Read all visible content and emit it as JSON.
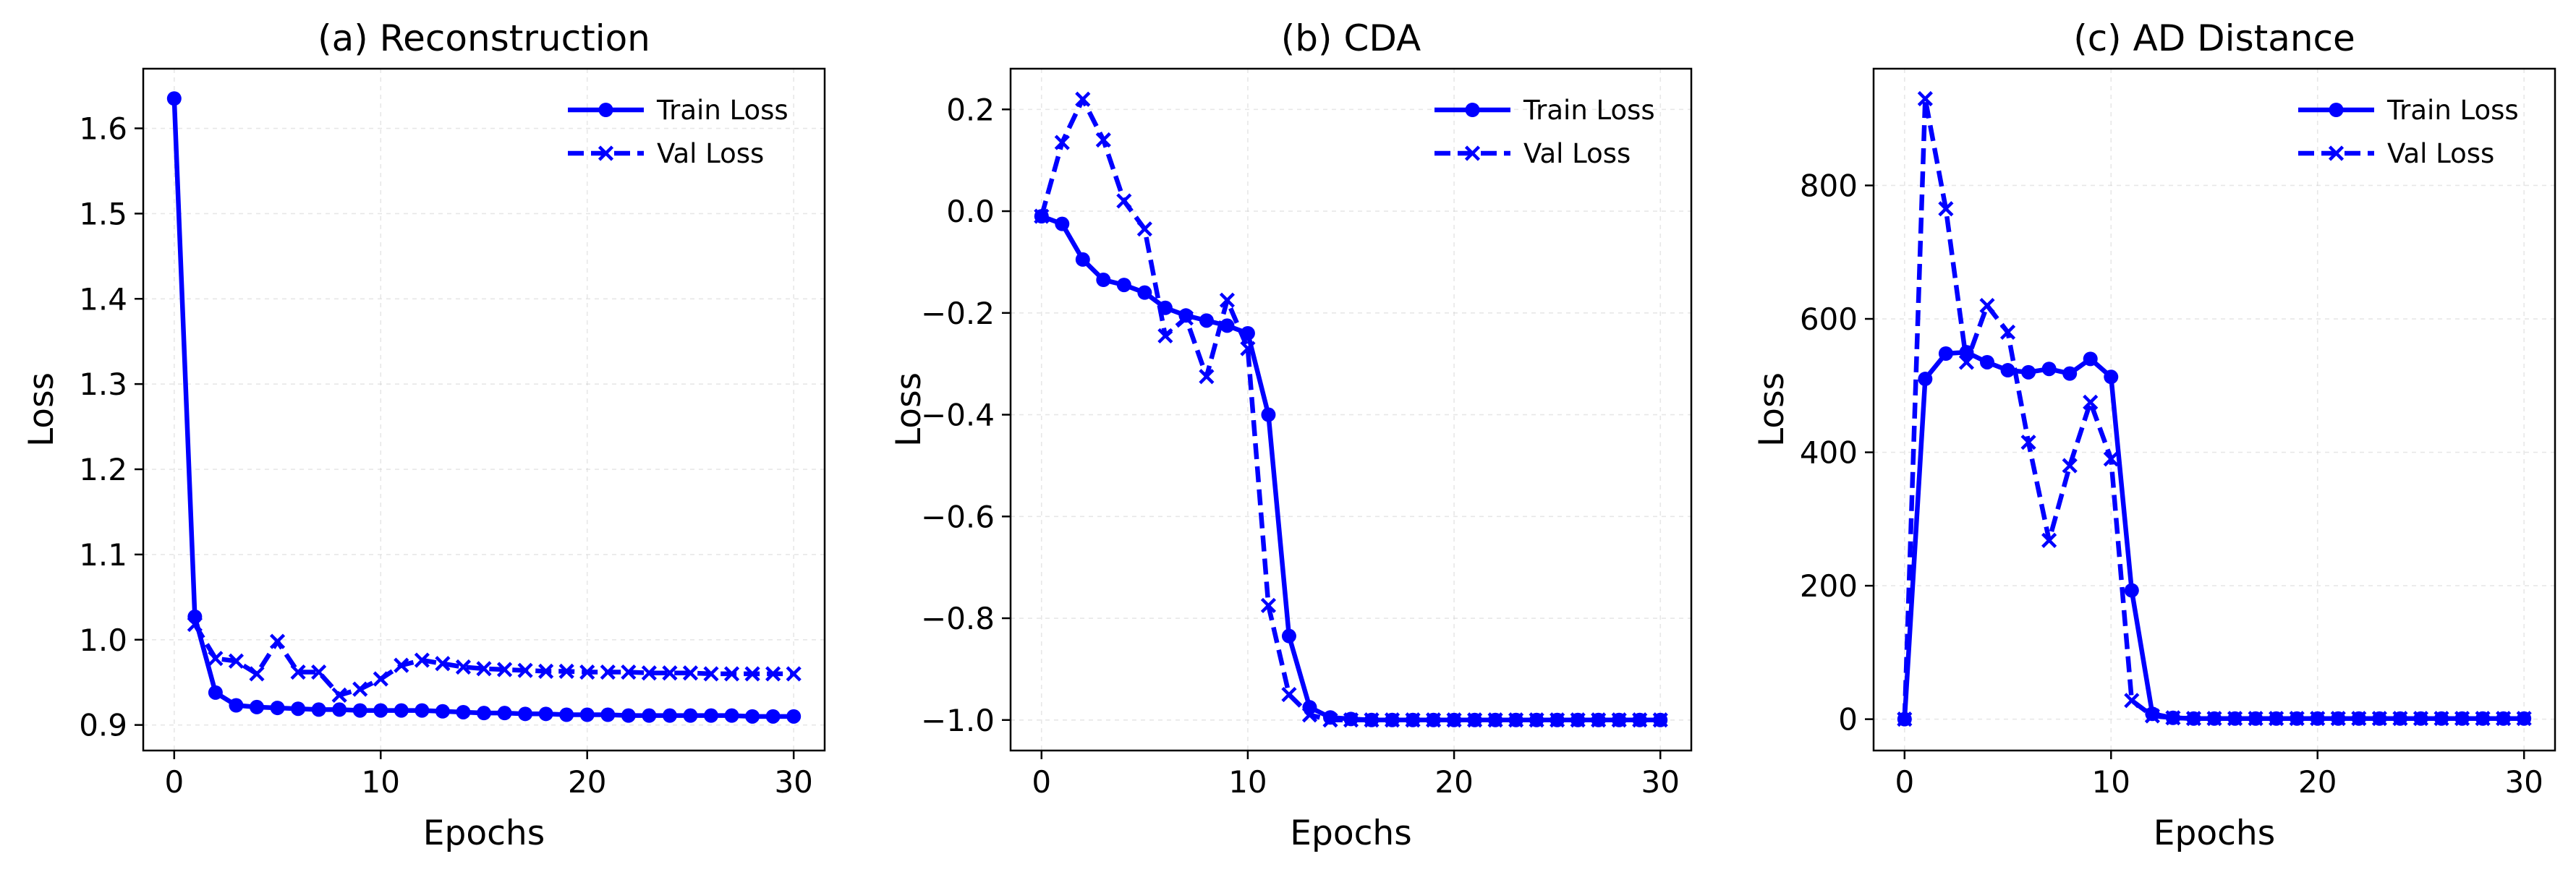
{
  "chart_data": [
    {
      "type": "line",
      "title": "(a) Reconstruction",
      "xlabel": "Epochs",
      "ylabel": "Loss",
      "xlim": [
        -1.5,
        31.5
      ],
      "ylim": [
        0.87,
        1.67
      ],
      "xticks": [
        0,
        10,
        20,
        30
      ],
      "yticks": [
        0.9,
        1.0,
        1.1,
        1.2,
        1.3,
        1.4,
        1.5,
        1.6
      ],
      "ytick_labels": [
        "0.9",
        "1.0",
        "1.1",
        "1.2",
        "1.3",
        "1.4",
        "1.5",
        "1.6"
      ],
      "grid": true,
      "legend_position": "top-right",
      "series": [
        {
          "name": "Train Loss",
          "style": "solid",
          "marker": "circle",
          "color": "#0000ff",
          "x": [
            0,
            1,
            2,
            3,
            4,
            5,
            6,
            7,
            8,
            9,
            10,
            11,
            12,
            13,
            14,
            15,
            16,
            17,
            18,
            19,
            20,
            21,
            22,
            23,
            24,
            25,
            26,
            27,
            28,
            29,
            30
          ],
          "y": [
            1.635,
            1.027,
            0.938,
            0.923,
            0.921,
            0.92,
            0.919,
            0.918,
            0.918,
            0.917,
            0.917,
            0.917,
            0.917,
            0.916,
            0.915,
            0.914,
            0.914,
            0.913,
            0.913,
            0.912,
            0.912,
            0.912,
            0.911,
            0.911,
            0.911,
            0.911,
            0.911,
            0.911,
            0.91,
            0.91,
            0.91
          ]
        },
        {
          "name": "Val Loss",
          "style": "dashed",
          "marker": "x",
          "color": "#0000ff",
          "x": [
            1,
            2,
            3,
            4,
            5,
            6,
            7,
            8,
            9,
            10,
            11,
            12,
            13,
            14,
            15,
            16,
            17,
            18,
            19,
            20,
            21,
            22,
            23,
            24,
            25,
            26,
            27,
            28,
            29,
            30
          ],
          "y": [
            1.018,
            0.978,
            0.975,
            0.96,
            0.998,
            0.962,
            0.962,
            0.935,
            0.942,
            0.954,
            0.97,
            0.976,
            0.972,
            0.968,
            0.966,
            0.965,
            0.964,
            0.963,
            0.963,
            0.962,
            0.962,
            0.962,
            0.961,
            0.961,
            0.961,
            0.96,
            0.96,
            0.96,
            0.96,
            0.96
          ]
        }
      ]
    },
    {
      "type": "line",
      "title": "(b) CDA",
      "xlabel": "Epochs",
      "ylabel": "Loss",
      "xlim": [
        -1.5,
        31.5
      ],
      "ylim": [
        -1.06,
        0.28
      ],
      "xticks": [
        0,
        10,
        20,
        30
      ],
      "yticks": [
        -1.0,
        -0.8,
        -0.6,
        -0.4,
        -0.2,
        0.0,
        0.2
      ],
      "ytick_labels": [
        "−1.0",
        "−0.8",
        "−0.6",
        "−0.4",
        "−0.2",
        "0.0",
        "0.2"
      ],
      "grid": true,
      "legend_position": "top-right",
      "series": [
        {
          "name": "Train Loss",
          "style": "solid",
          "marker": "circle",
          "color": "#0000ff",
          "x": [
            0,
            1,
            2,
            3,
            4,
            5,
            6,
            7,
            8,
            9,
            10,
            11,
            12,
            13,
            14,
            15,
            16,
            17,
            18,
            19,
            20,
            21,
            22,
            23,
            24,
            25,
            26,
            27,
            28,
            29,
            30
          ],
          "y": [
            -0.01,
            -0.025,
            -0.095,
            -0.135,
            -0.145,
            -0.16,
            -0.19,
            -0.205,
            -0.215,
            -0.225,
            -0.24,
            -0.4,
            -0.835,
            -0.975,
            -0.995,
            -0.998,
            -1.0,
            -1.0,
            -1.0,
            -1.0,
            -1.0,
            -1.0,
            -1.0,
            -1.0,
            -1.0,
            -1.0,
            -1.0,
            -1.0,
            -1.0,
            -1.0,
            -1.0
          ]
        },
        {
          "name": "Val Loss",
          "style": "dashed",
          "marker": "x",
          "color": "#0000ff",
          "x": [
            0,
            1,
            2,
            3,
            4,
            5,
            6,
            7,
            8,
            9,
            10,
            11,
            12,
            13,
            14,
            15,
            16,
            17,
            18,
            19,
            20,
            21,
            22,
            23,
            24,
            25,
            26,
            27,
            28,
            29,
            30
          ],
          "y": [
            -0.01,
            0.135,
            0.22,
            0.14,
            0.02,
            -0.035,
            -0.245,
            -0.21,
            -0.325,
            -0.175,
            -0.27,
            -0.775,
            -0.95,
            -0.99,
            -1.0,
            -1.0,
            -1.0,
            -1.0,
            -1.0,
            -1.0,
            -1.0,
            -1.0,
            -1.0,
            -1.0,
            -1.0,
            -1.0,
            -1.0,
            -1.0,
            -1.0,
            -1.0,
            -1.0
          ]
        }
      ]
    },
    {
      "type": "line",
      "title": "(c) AD Distance",
      "xlabel": "Epochs",
      "ylabel": "Loss",
      "xlim": [
        -1.5,
        31.5
      ],
      "ylim": [
        -47,
        975
      ],
      "xticks": [
        0,
        10,
        20,
        30
      ],
      "yticks": [
        0,
        200,
        400,
        600,
        800
      ],
      "ytick_labels": [
        "0",
        "200",
        "400",
        "600",
        "800"
      ],
      "grid": true,
      "legend_position": "top-right",
      "series": [
        {
          "name": "Train Loss",
          "style": "solid",
          "marker": "circle",
          "color": "#0000ff",
          "x": [
            0,
            1,
            2,
            3,
            4,
            5,
            6,
            7,
            8,
            9,
            10,
            11,
            12,
            13,
            14,
            15,
            16,
            17,
            18,
            19,
            20,
            21,
            22,
            23,
            24,
            25,
            26,
            27,
            28,
            29,
            30
          ],
          "y": [
            0,
            510,
            548,
            550,
            535,
            523,
            520,
            525,
            518,
            540,
            513,
            193,
            8,
            2,
            1,
            1,
            1,
            1,
            1,
            1,
            1,
            1,
            1,
            1,
            1,
            1,
            1,
            1,
            1,
            1,
            1
          ]
        },
        {
          "name": "Val Loss",
          "style": "dashed",
          "marker": "x",
          "color": "#0000ff",
          "x": [
            0,
            1,
            2,
            3,
            4,
            5,
            6,
            7,
            8,
            9,
            10,
            11,
            12,
            13,
            14,
            15,
            16,
            17,
            18,
            19,
            20,
            21,
            22,
            23,
            24,
            25,
            26,
            27,
            28,
            29,
            30
          ],
          "y": [
            0,
            930,
            765,
            535,
            620,
            580,
            415,
            268,
            380,
            475,
            390,
            28,
            5,
            2,
            1,
            1,
            1,
            1,
            1,
            1,
            1,
            1,
            1,
            1,
            1,
            1,
            1,
            1,
            1,
            1,
            1
          ]
        }
      ]
    }
  ]
}
